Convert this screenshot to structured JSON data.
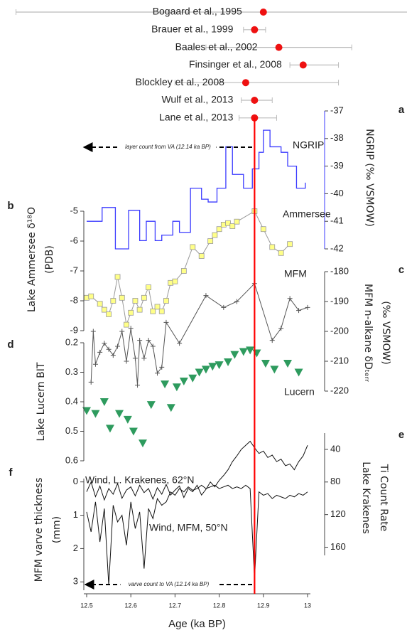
{
  "chart_data": [
    {
      "type": "interval",
      "categories": [
        "Bogaard et al., 1995",
        "Brauer et al., 1999",
        "Baales et al., 2002",
        "Finsinger et al., 2008",
        "Blockley et al., 2008",
        "Wulf et al., 2013",
        "Lane et al., 2013"
      ],
      "x": [
        12.9,
        12.88,
        12.935,
        12.99,
        12.86,
        12.88,
        12.88
      ],
      "xmin": [
        12.34,
        12.855,
        12.77,
        12.96,
        12.7,
        12.85,
        12.845
      ],
      "xmax": [
        13.46,
        12.905,
        13.1,
        13.07,
        13.07,
        12.92,
        12.93
      ],
      "color": "#ee1111",
      "error_color": "#bbbbbb",
      "vline": {
        "x": 12.88,
        "color": "#ff0000"
      }
    },
    {
      "type": "step",
      "panel": "a",
      "ylabel": [
        "NGRIP (‰ VSMOW)"
      ],
      "ylim": [
        -42,
        -37
      ],
      "yticks": [
        -37,
        -38,
        -39,
        -40,
        -41,
        -42
      ],
      "axis_side": "right",
      "annotation": "layer count from VA (12.14 ka BP)",
      "series": [
        {
          "name": "NGRIP",
          "color": "#3b3bff",
          "x": [
            12.5,
            12.535,
            12.565,
            12.595,
            12.62,
            12.635,
            12.655,
            12.67,
            12.695,
            12.71,
            12.735,
            12.76,
            12.775,
            12.795,
            12.815,
            12.83,
            12.855,
            12.875,
            12.89,
            12.9,
            12.915,
            12.94,
            12.955,
            12.975,
            12.995
          ],
          "values": [
            -41.0,
            -40.5,
            -42.0,
            -40.6,
            -41.7,
            -41.0,
            -41.7,
            -41.5,
            -41.0,
            -41.4,
            -39.8,
            -40.2,
            -40.3,
            -39.8,
            -38.3,
            -39.3,
            -39.8,
            -39.1,
            -38.5,
            -37.7,
            -38.3,
            -38.5,
            -39.0,
            -39.8,
            -39.6
          ]
        }
      ]
    },
    {
      "type": "line",
      "panel": "b",
      "ylabel": [
        "Lake Ammersee δ¹⁸O",
        "(PDB)"
      ],
      "ylim": [
        -9,
        -5
      ],
      "yticks": [
        -5,
        -6,
        -7,
        -8,
        -9
      ],
      "axis_side": "left",
      "series": [
        {
          "name": "Ammersee",
          "color": "#999999",
          "marker": "square",
          "marker_color": "#ffff88",
          "x": [
            12.5,
            12.51,
            12.53,
            12.54,
            12.55,
            12.56,
            12.57,
            12.58,
            12.59,
            12.6,
            12.61,
            12.62,
            12.63,
            12.64,
            12.65,
            12.66,
            12.67,
            12.68,
            12.69,
            12.7,
            12.72,
            12.74,
            12.76,
            12.78,
            12.79,
            12.8,
            12.81,
            12.82,
            12.83,
            12.84,
            12.88,
            12.9,
            12.92,
            12.94,
            12.96
          ],
          "values": [
            -7.9,
            -7.85,
            -8.1,
            -8.3,
            -8.45,
            -8,
            -7.2,
            -7.9,
            -8.8,
            -8.4,
            -8,
            -8.3,
            -7.9,
            -7.55,
            -8.35,
            -8.2,
            -8.35,
            -8,
            -7.4,
            -7.35,
            -7,
            -6.2,
            -6.5,
            -6,
            -5.8,
            -5.6,
            -5.45,
            -5.4,
            -5.5,
            -5.35,
            -5,
            -5.6,
            -6.2,
            -6.4,
            -6.1
          ]
        }
      ]
    },
    {
      "type": "line",
      "panel": "c",
      "ylabel": [
        "MFM n-alkane δDₜₑᵣᵣ",
        "(‰ VSMOW)"
      ],
      "ylim": [
        -220,
        -180
      ],
      "yticks": [
        -180,
        -190,
        -200,
        -210,
        -220
      ],
      "axis_side": "right",
      "series": [
        {
          "name": "MFM",
          "color": "#555555",
          "marker": "plus",
          "marker_color": "#555555",
          "x": [
            12.51,
            12.515,
            12.52,
            12.53,
            12.54,
            12.55,
            12.56,
            12.57,
            12.58,
            12.59,
            12.6,
            12.61,
            12.615,
            12.62,
            12.63,
            12.64,
            12.65,
            12.66,
            12.67,
            12.68,
            12.71,
            12.77,
            12.81,
            12.84,
            12.88,
            12.92,
            12.94,
            12.96,
            12.98,
            13
          ],
          "values": [
            -217,
            -200,
            -211,
            -207,
            -204,
            -206,
            -208,
            -205,
            -200,
            -210,
            -199,
            -209,
            -218,
            -203,
            -209,
            -203,
            -205,
            -214,
            -212,
            -197,
            -204,
            -188,
            -192,
            -190,
            -184,
            -203,
            -199,
            -189,
            -193,
            -192
          ]
        }
      ]
    },
    {
      "type": "scatter",
      "panel": "d",
      "ylabel": [
        "Lake Lucern BIT"
      ],
      "ylim": [
        0.2,
        0.6
      ],
      "yticks": [
        0.2,
        0.3,
        0.4,
        0.5,
        0.6
      ],
      "inverted": true,
      "axis_side": "left",
      "series": [
        {
          "name": "Lucern",
          "color": "#2e9b5e",
          "marker": "triangle",
          "marker_color": "#2e9b5e",
          "x": [
            12.5,
            12.52,
            12.54,
            12.553,
            12.574,
            12.593,
            12.606,
            12.627,
            12.646,
            12.677,
            12.691,
            12.704,
            12.72,
            12.74,
            12.755,
            12.77,
            12.785,
            12.8,
            12.82,
            12.835,
            12.855,
            12.87,
            12.885,
            12.905,
            12.925,
            12.955,
            12.98
          ],
          "values": [
            0.43,
            0.44,
            0.4,
            0.49,
            0.44,
            0.46,
            0.5,
            0.54,
            0.41,
            0.34,
            0.42,
            0.35,
            0.33,
            0.32,
            0.3,
            0.29,
            0.28,
            0.275,
            0.265,
            0.24,
            0.23,
            0.225,
            0.235,
            0.27,
            0.29,
            0.27,
            0.3
          ]
        }
      ]
    },
    {
      "type": "line",
      "panel": "e",
      "ylabel": [
        "Lake Krakenes",
        "Ti Count Rate"
      ],
      "ylim": [
        20,
        170
      ],
      "yticks": [
        40,
        80,
        120,
        160
      ],
      "inverted": true,
      "axis_side": "right",
      "series": [
        {
          "name": "Wind, L. Krakenes, 62°N",
          "color": "#111111",
          "x": [
            12.5,
            12.51,
            12.52,
            12.53,
            12.54,
            12.55,
            12.56,
            12.57,
            12.58,
            12.59,
            12.6,
            12.61,
            12.62,
            12.63,
            12.64,
            12.65,
            12.66,
            12.67,
            12.68,
            12.69,
            12.7,
            12.71,
            12.72,
            12.73,
            12.74,
            12.75,
            12.76,
            12.77,
            12.78,
            12.79,
            12.8,
            12.81,
            12.82,
            12.83,
            12.84,
            12.85,
            12.86,
            12.87,
            12.88,
            12.89,
            12.9,
            12.91,
            12.92,
            12.93,
            12.94,
            12.95,
            12.96,
            12.97,
            12.98,
            12.99,
            13
          ],
          "values": [
            92,
            80,
            98,
            85,
            102,
            88,
            95,
            82,
            100,
            90,
            86,
            97,
            84,
            93,
            88,
            101,
            87,
            95,
            83,
            96,
            90,
            85,
            99,
            88,
            92,
            84,
            96,
            89,
            80,
            86,
            78,
            72,
            65,
            55,
            48,
            40,
            35,
            30,
            38,
            45,
            42,
            50,
            47,
            55,
            52,
            60,
            58,
            65,
            55,
            48,
            35
          ]
        }
      ]
    },
    {
      "type": "line",
      "panel": "f",
      "ylabel": [
        "MFM varve thickness",
        "(mm)"
      ],
      "ylim": [
        -0.1,
        3.25
      ],
      "yticks": [
        0,
        1,
        2,
        3
      ],
      "inverted": true,
      "axis_side": "left",
      "annotation": "varve count to VA (12.14 ka BP)",
      "xlabel": "Age (ka BP)",
      "xlim": [
        12.5,
        13
      ],
      "xticks": [
        12.5,
        12.6,
        12.7,
        12.8,
        12.9,
        13
      ],
      "series": [
        {
          "name": "Wind, MFM, 50°N",
          "color": "#111111",
          "x": [
            12.5,
            12.51,
            12.52,
            12.53,
            12.54,
            12.55,
            12.56,
            12.57,
            12.58,
            12.59,
            12.6,
            12.61,
            12.62,
            12.63,
            12.64,
            12.65,
            12.66,
            12.67,
            12.68,
            12.69,
            12.7,
            12.71,
            12.72,
            12.73,
            12.74,
            12.75,
            12.76,
            12.77,
            12.78,
            12.79,
            12.8,
            12.81,
            12.82,
            12.83,
            12.84,
            12.85,
            12.86,
            12.87,
            12.88,
            12.89,
            12.9,
            12.91,
            12.92,
            12.93,
            12.94,
            12.95,
            12.96,
            12.97,
            12.98,
            12.99,
            13
          ],
          "values": [
            0.9,
            1.5,
            0.6,
            1.8,
            0.8,
            3.1,
            0.7,
            1.2,
            1,
            1.9,
            0.6,
            1.4,
            0.9,
            2.6,
            0.8,
            1.1,
            0.5,
            0.7,
            0.6,
            0.3,
            0.4,
            0.2,
            0.3,
            0.15,
            0.25,
            0.2,
            0.1,
            0.2,
            0.15,
            0.1,
            0.2,
            0.15,
            0.1,
            0.2,
            0.15,
            0.2,
            0.1,
            0.2,
            2.9,
            0.3,
            0.4,
            0.35,
            0.5,
            0.4,
            0.45,
            0.5,
            0.4,
            0.45,
            0.35,
            0.4,
            0.3
          ]
        }
      ]
    }
  ]
}
